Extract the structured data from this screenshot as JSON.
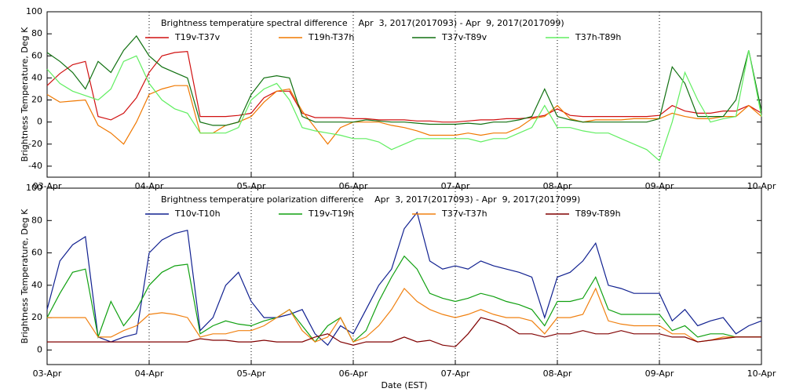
{
  "chart_data": [
    {
      "type": "line",
      "title": "Brightness temperature spectral difference    Apr  3, 2017(2017093) - Apr  9, 2017(2017099)",
      "ylabel": "Brightness Temperature, Deg K",
      "x": [
        0,
        0.125,
        0.25,
        0.375,
        0.5,
        0.625,
        0.75,
        0.875,
        1,
        1.125,
        1.25,
        1.375,
        1.5,
        1.625,
        1.75,
        1.875,
        2,
        2.125,
        2.25,
        2.375,
        2.5,
        2.625,
        2.75,
        2.875,
        3,
        3.125,
        3.25,
        3.375,
        3.5,
        3.625,
        3.75,
        3.875,
        4,
        4.125,
        4.25,
        4.375,
        4.5,
        4.625,
        4.75,
        4.875,
        5,
        5.125,
        5.25,
        5.375,
        5.5,
        5.625,
        5.75,
        5.875,
        6,
        6.125,
        6.25,
        6.375,
        6.5,
        6.625,
        6.75,
        6.875,
        7
      ],
      "series": [
        {
          "name": "T19v-T37v",
          "color": "#d01010",
          "values": [
            33,
            44,
            52,
            55,
            5,
            2,
            8,
            22,
            45,
            60,
            63,
            64,
            5,
            5,
            5,
            6,
            8,
            22,
            28,
            28,
            8,
            4,
            4,
            4,
            3,
            3,
            2,
            2,
            2,
            1,
            1,
            0,
            0,
            1,
            2,
            2,
            3,
            3,
            4,
            6,
            12,
            6,
            5,
            5,
            5,
            5,
            5,
            5,
            6,
            15,
            10,
            8,
            8,
            10,
            10,
            15,
            8
          ]
        },
        {
          "name": "T19h-T37h",
          "color": "#f07800",
          "values": [
            25,
            18,
            19,
            20,
            -3,
            -10,
            -20,
            0,
            25,
            30,
            33,
            33,
            -10,
            -10,
            -3,
            0,
            5,
            18,
            28,
            30,
            10,
            -5,
            -20,
            -5,
            0,
            0,
            0,
            -3,
            -5,
            -8,
            -12,
            -12,
            -12,
            -10,
            -12,
            -10,
            -10,
            -5,
            3,
            5,
            15,
            3,
            0,
            2,
            2,
            2,
            3,
            3,
            3,
            8,
            5,
            3,
            3,
            5,
            5,
            15,
            5
          ]
        },
        {
          "name": "T37v-T89v",
          "color": "#107010",
          "values": [
            63,
            55,
            45,
            30,
            55,
            45,
            65,
            78,
            60,
            50,
            45,
            40,
            0,
            -3,
            -3,
            0,
            25,
            40,
            42,
            40,
            5,
            0,
            0,
            0,
            0,
            2,
            1,
            0,
            0,
            -1,
            -2,
            -2,
            -2,
            -1,
            -2,
            0,
            0,
            2,
            5,
            30,
            5,
            2,
            0,
            0,
            0,
            0,
            0,
            0,
            3,
            50,
            35,
            5,
            5,
            5,
            20,
            65,
            10
          ]
        },
        {
          "name": "T37h-T89h",
          "color": "#60ee60",
          "values": [
            48,
            35,
            28,
            24,
            20,
            30,
            55,
            60,
            35,
            20,
            12,
            8,
            -10,
            -10,
            -10,
            -5,
            20,
            30,
            35,
            20,
            -5,
            -8,
            -10,
            -12,
            -15,
            -15,
            -18,
            -25,
            -20,
            -15,
            -15,
            -15,
            -15,
            -15,
            -18,
            -15,
            -15,
            -10,
            -5,
            15,
            -5,
            -5,
            -8,
            -10,
            -10,
            -15,
            -20,
            -25,
            -35,
            0,
            45,
            20,
            0,
            3,
            5,
            65,
            5
          ]
        }
      ],
      "xlim": [
        0,
        7
      ],
      "xticks": [
        {
          "value": 0,
          "label": "03-Apr"
        },
        {
          "value": 1,
          "label": "04-Apr"
        },
        {
          "value": 2,
          "label": "05-Apr"
        },
        {
          "value": 3,
          "label": "06-Apr"
        },
        {
          "value": 4,
          "label": "07-Apr"
        },
        {
          "value": 5,
          "label": "08-Apr"
        },
        {
          "value": 6,
          "label": "09-Apr"
        },
        {
          "value": 7,
          "label": "10-Apr"
        }
      ],
      "ylim": [
        -50,
        100
      ],
      "yticks": [
        -40,
        -20,
        0,
        20,
        40,
        60,
        80,
        100
      ],
      "grid": true
    },
    {
      "type": "line",
      "title": "Brightness temperature polarization difference    Apr  3, 2017(2017093) - Apr  9, 2017(2017099)",
      "ylabel": "Brightness Temperature, Deg K",
      "xlabel": "Date (EST)",
      "x": [
        0,
        0.125,
        0.25,
        0.375,
        0.5,
        0.625,
        0.75,
        0.875,
        1,
        1.125,
        1.25,
        1.375,
        1.5,
        1.625,
        1.75,
        1.875,
        2,
        2.125,
        2.25,
        2.375,
        2.5,
        2.625,
        2.75,
        2.875,
        3,
        3.125,
        3.25,
        3.375,
        3.5,
        3.625,
        3.75,
        3.875,
        4,
        4.125,
        4.25,
        4.375,
        4.5,
        4.625,
        4.75,
        4.875,
        5,
        5.125,
        5.25,
        5.375,
        5.5,
        5.625,
        5.75,
        5.875,
        6,
        6.125,
        6.25,
        6.375,
        6.5,
        6.625,
        6.75,
        6.875,
        7
      ],
      "series": [
        {
          "name": "T10v-T10h",
          "color": "#102090",
          "values": [
            25,
            55,
            65,
            70,
            8,
            5,
            8,
            10,
            60,
            68,
            72,
            74,
            12,
            20,
            40,
            48,
            30,
            20,
            20,
            22,
            25,
            10,
            3,
            15,
            10,
            25,
            40,
            50,
            75,
            85,
            55,
            50,
            52,
            50,
            55,
            52,
            50,
            48,
            45,
            20,
            45,
            48,
            55,
            66,
            40,
            38,
            35,
            35,
            35,
            18,
            25,
            15,
            18,
            20,
            10,
            15,
            18
          ]
        },
        {
          "name": "T19v-T19h",
          "color": "#10a010",
          "values": [
            20,
            35,
            48,
            50,
            8,
            30,
            15,
            25,
            40,
            48,
            52,
            53,
            10,
            15,
            18,
            16,
            15,
            18,
            20,
            25,
            15,
            5,
            15,
            20,
            5,
            12,
            30,
            45,
            58,
            50,
            35,
            32,
            30,
            32,
            35,
            33,
            30,
            28,
            25,
            15,
            30,
            30,
            32,
            45,
            25,
            22,
            22,
            22,
            22,
            12,
            15,
            8,
            10,
            10,
            8,
            8,
            8
          ]
        },
        {
          "name": "T37v-T37h",
          "color": "#f08010",
          "values": [
            20,
            20,
            20,
            20,
            8,
            8,
            12,
            15,
            22,
            23,
            22,
            20,
            8,
            10,
            10,
            12,
            12,
            15,
            20,
            25,
            12,
            5,
            8,
            20,
            5,
            8,
            15,
            25,
            38,
            30,
            25,
            22,
            20,
            22,
            25,
            22,
            20,
            20,
            18,
            10,
            20,
            20,
            22,
            38,
            18,
            16,
            15,
            15,
            15,
            10,
            10,
            5,
            6,
            8,
            8,
            8,
            8
          ]
        },
        {
          "name": "T89v-T89h",
          "color": "#800000",
          "values": [
            5,
            5,
            5,
            5,
            5,
            5,
            5,
            5,
            5,
            5,
            5,
            5,
            7,
            6,
            6,
            5,
            5,
            6,
            5,
            5,
            5,
            8,
            10,
            5,
            3,
            5,
            5,
            5,
            8,
            5,
            6,
            3,
            2,
            10,
            20,
            18,
            15,
            10,
            10,
            8,
            10,
            10,
            12,
            10,
            10,
            12,
            10,
            10,
            10,
            8,
            8,
            5,
            6,
            7,
            8,
            8,
            8
          ]
        }
      ],
      "xlim": [
        0,
        7
      ],
      "xticks": [
        {
          "value": 0,
          "label": "03-Apr"
        },
        {
          "value": 1,
          "label": "04-Apr"
        },
        {
          "value": 2,
          "label": "05-Apr"
        },
        {
          "value": 3,
          "label": "06-Apr"
        },
        {
          "value": 4,
          "label": "07-Apr"
        },
        {
          "value": 5,
          "label": "08-Apr"
        },
        {
          "value": 6,
          "label": "09-Apr"
        },
        {
          "value": 7,
          "label": "10-Apr"
        }
      ],
      "ylim": [
        -9,
        100
      ],
      "yticks": [
        0,
        20,
        40,
        60,
        80,
        100
      ],
      "grid": true
    }
  ]
}
